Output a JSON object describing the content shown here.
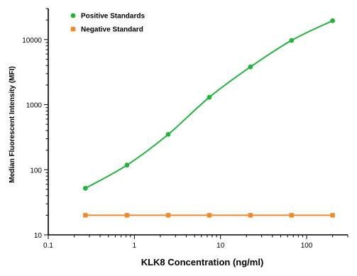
{
  "chart_data": {
    "type": "line",
    "title": "",
    "xlabel": "KLK8 Concentration (ng/ml)",
    "ylabel": "Median  Fluorescent Intensity  (MFI)",
    "x_scale": "log",
    "y_scale": "log",
    "xlim": [
      0.1,
      300
    ],
    "ylim": [
      10,
      30000
    ],
    "x_ticks": [
      0.1,
      1,
      10,
      100
    ],
    "x_tick_labels": [
      "0.1",
      "1",
      "10",
      "100"
    ],
    "y_ticks": [
      10,
      100,
      1000,
      10000
    ],
    "y_tick_labels": [
      "10",
      "100",
      "1000",
      "10000"
    ],
    "grid": false,
    "legend_position": "top-left",
    "series": [
      {
        "name": "Positive Standards",
        "color": "#22b33a",
        "marker": "circle",
        "x": [
          0.27,
          0.82,
          2.47,
          7.41,
          22.2,
          66.7,
          200
        ],
        "y": [
          52,
          118,
          350,
          1300,
          3800,
          9700,
          19500
        ]
      },
      {
        "name": "Negative Standard",
        "color": "#ee8a2a",
        "marker": "square",
        "x": [
          0.27,
          0.82,
          2.47,
          7.41,
          22.2,
          66.7,
          200
        ],
        "y": [
          20,
          20,
          20,
          20,
          20,
          20,
          20
        ]
      }
    ]
  }
}
